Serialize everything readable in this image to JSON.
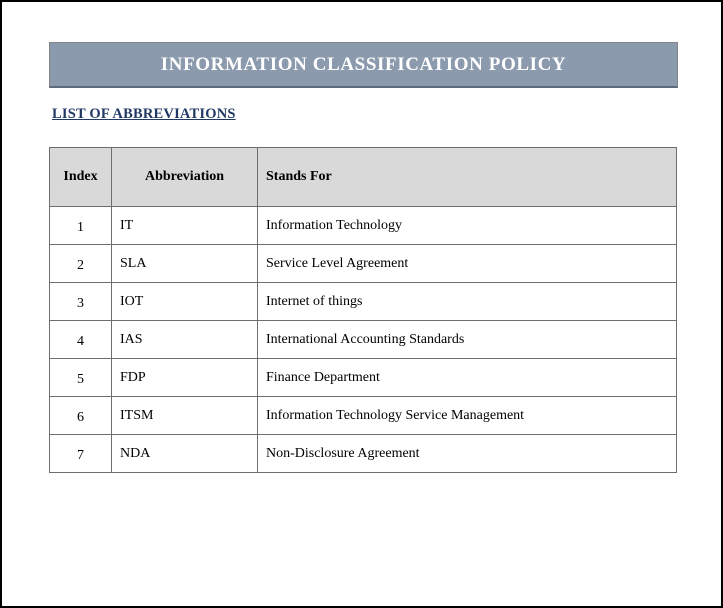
{
  "document": {
    "banner_title": "INFORMATION CLASSIFICATION POLICY",
    "section_heading": "LIST OF ABBREVIATIONS"
  },
  "abbreviations_table": {
    "headers": {
      "index": "Index",
      "abbreviation": "Abbreviation",
      "stands_for": "Stands For"
    },
    "rows": [
      {
        "index": "1",
        "abbreviation": "IT",
        "stands_for": "Information Technology"
      },
      {
        "index": "2",
        "abbreviation": "SLA",
        "stands_for": "Service Level Agreement"
      },
      {
        "index": "3",
        "abbreviation": "IOT",
        "stands_for": "Internet of things"
      },
      {
        "index": "4",
        "abbreviation": "IAS",
        "stands_for": "International Accounting Standards"
      },
      {
        "index": "5",
        "abbreviation": "FDP",
        "stands_for": "Finance Department"
      },
      {
        "index": "6",
        "abbreviation": "ITSM",
        "stands_for": "Information Technology Service Management"
      },
      {
        "index": "7",
        "abbreviation": "NDA",
        "stands_for": "Non-Disclosure Agreement"
      }
    ]
  },
  "colors": {
    "banner_fill": "#8C9AAE",
    "banner_border": "#848484",
    "banner_text": "#FFFFFF",
    "heading_text": "#1F3864",
    "table_header_fill": "#D9D9D9",
    "table_border": "#6E6E6E",
    "page_border": "#000000",
    "body_text": "#000000"
  }
}
